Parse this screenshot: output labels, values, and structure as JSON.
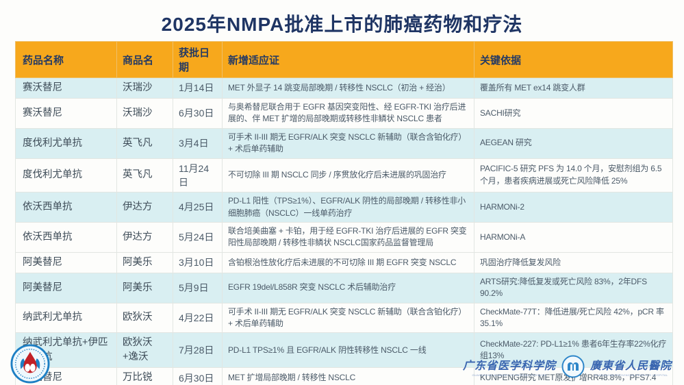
{
  "title": "2025年NMPA批准上市的肺癌药物和疗法",
  "colors": {
    "title_navy": "#1f3564",
    "header_orange": "#f7a81c",
    "row_cyan": "#d9eff2",
    "row_white": "#fdfdfb",
    "body_text": "#4b5a68",
    "footer_blue": "#3a66b0"
  },
  "table": {
    "headers": [
      "药品名称",
      "商品名",
      "获批日期",
      "新增适应证",
      "关键依据"
    ],
    "rows": [
      {
        "drug": "赛沃替尼",
        "brand": "沃瑞沙",
        "date": "1月14日",
        "indication": "MET 外显子 14 跳变局部晚期 / 转移性 NSCLC（初治 + 经治）",
        "evidence": "覆盖所有 MET ex14 跳变人群",
        "shade": "cyan"
      },
      {
        "drug": "赛沃替尼",
        "brand": "沃瑞沙",
        "date": "6月30日",
        "indication": "与奥希替尼联合用于 EGFR 基因突变阳性、经 EGFR-TKI 治疗后进展的、伴 MET 扩增的局部晚期或转移性非鳞状 NSCLC 患者",
        "evidence": "SACHI研究",
        "shade": "white"
      },
      {
        "drug": "度伐利尤单抗",
        "brand": "英飞凡",
        "date": "3月4日",
        "indication": "可手术 II-III 期无 EGFR/ALK 突变 NSCLC 新辅助（联合含铂化疗）+ 术后单药辅助",
        "evidence": "AEGEAN 研究",
        "shade": "cyan"
      },
      {
        "drug": "度伐利尤单抗",
        "brand": "英飞凡",
        "date": "11月24日",
        "indication": "不可切除 III 期 NSCLC 同步 / 序贯放化疗后未进展的巩固治疗",
        "evidence": "PACIFIC-5 研究 PFS 为 14.0 个月，安慰剂组为 6.5 个月，患者疾病进展或死亡风险降低 25%",
        "shade": "white"
      },
      {
        "drug": "依沃西单抗",
        "brand": "伊达方",
        "date": "4月25日",
        "indication": "PD-L1 阳性（TPS≥1%）、EGFR/ALK 阴性的局部晚期 / 转移性非小细胞肺癌（NSCLC）一线单药治疗",
        "evidence": "HARMONi-2",
        "shade": "cyan"
      },
      {
        "drug": "依沃西单抗",
        "brand": "伊达方",
        "date": "5月24日",
        "indication": "联合培美曲塞 + 卡铂，用于经 EGFR-TKI 治疗后进展的 EGFR 突变阳性局部晚期 / 转移性非鳞状 NSCLC国家药品监督管理局",
        "evidence": "HARMONi-A",
        "shade": "white"
      },
      {
        "drug": "阿美替尼",
        "brand": "阿美乐",
        "date": "3月10日",
        "indication": "含铂根治性放化疗后未进展的不可切除 III 期 EGFR 突变 NSCLC",
        "evidence": "巩固治疗降低复发风险",
        "shade": "white"
      },
      {
        "drug": "阿美替尼",
        "brand": "阿美乐",
        "date": "5月9日",
        "indication": "EGFR 19del/L858R 突变 NSCLC 术后辅助治疗",
        "evidence": "ARTS研究:降低复发或死亡风险 83%，2年DFS 90.2%",
        "shade": "cyan"
      },
      {
        "drug": "纳武利尤单抗",
        "brand": "欧狄沃",
        "date": "4月22日",
        "indication": "可手术 II-III 期无 EGFR/ALK 突变 NSCLC 新辅助（联合含铂化疗）+ 术后单药辅助",
        "evidence": "CheckMate-77T：降低进展/死亡风险 42%，pCR 率 35.1%",
        "shade": "white"
      },
      {
        "drug": "纳武利尤单抗+伊匹木单抗",
        "brand": "欧狄沃+逸沃",
        "date": "7月28日",
        "indication": "PD-L1 TPS≥1% 且 EGFR/ALK 阴性转移性 NSCLC 一线",
        "evidence": "CheckMate-227: PD-L1≥1% 患者6年生存率22%化疗组13%",
        "shade": "cyan"
      },
      {
        "drug": "伯瑞替尼",
        "brand": "万比锐",
        "date": "6月30日",
        "indication": "MET 扩增局部晚期 / 转移性 NSCLC",
        "evidence": "KUNPENG研究 MET原发扩增RR48.8%，PFS7.4",
        "shade": "white"
      }
    ]
  },
  "footer": {
    "org1_name": "广东省医学科学院",
    "org1_sub": "GUANGDONG ACADEMY OF MEDICAL SCIENCES",
    "org2_name": "廣東省人民醫院",
    "org2_sub": "GUANGDONG PROVINCIAL PEOPLE'S HOSPITAL"
  }
}
